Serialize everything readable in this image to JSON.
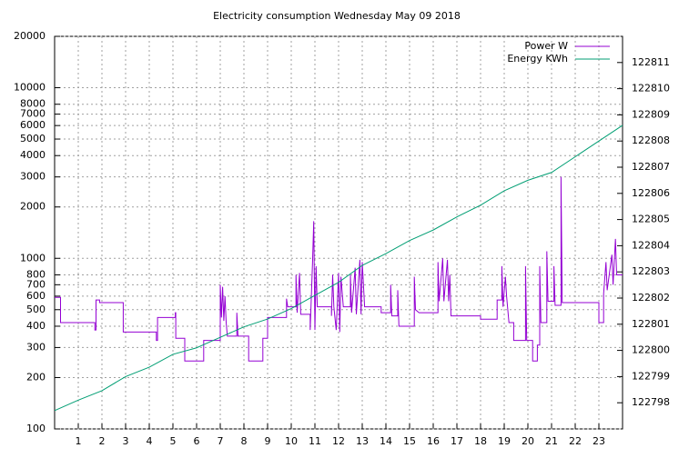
{
  "chart_data": {
    "type": "line",
    "title": "Electricity consumption Wednesday May 09 2018",
    "log_y": true,
    "grid": true,
    "legend": "top-right",
    "xlim": [
      0,
      24
    ],
    "xticks": [
      1,
      2,
      3,
      4,
      5,
      6,
      7,
      8,
      9,
      10,
      11,
      12,
      13,
      14,
      15,
      16,
      17,
      18,
      19,
      20,
      21,
      22,
      23
    ],
    "ylim": [
      100,
      20000
    ],
    "yticks": [
      100,
      200,
      300,
      400,
      500,
      600,
      700,
      800,
      1000,
      2000,
      3000,
      4000,
      5000,
      6000,
      7000,
      8000,
      10000,
      20000
    ],
    "y2lim": [
      122797,
      122812
    ],
    "y2ticks": [
      122798,
      122799,
      122800,
      122801,
      122802,
      122803,
      122804,
      122805,
      122806,
      122807,
      122808,
      122809,
      122810,
      122811
    ],
    "series": [
      {
        "name": "Power W",
        "color": "#9400d3",
        "x": [
          0,
          0.25,
          0.25,
          1.7,
          1.7,
          1.75,
          1.75,
          1.9,
          1.9,
          2.9,
          2.9,
          4.3,
          4.3,
          4.35,
          4.35,
          5.1,
          5.1,
          5.12,
          5.12,
          5.5,
          5.5,
          6.3,
          6.3,
          7.0,
          7.0,
          7.05,
          7.1,
          7.15,
          7.2,
          7.25,
          7.3,
          7.7,
          7.7,
          7.75,
          8.2,
          8.2,
          8.8,
          8.8,
          9.0,
          9.0,
          9.8,
          9.8,
          9.85,
          10.2,
          10.2,
          10.25,
          10.35,
          10.4,
          10.8,
          10.8,
          10.9,
          10.95,
          11.0,
          11.05,
          11.1,
          11.7,
          11.7,
          11.75,
          11.8,
          11.9,
          12.0,
          12.05,
          12.1,
          12.2,
          12.5,
          12.5,
          12.55,
          12.7,
          12.75,
          12.9,
          12.95,
          13.0,
          13.1,
          13.8,
          13.8,
          14.2,
          14.2,
          14.25,
          14.5,
          14.5,
          14.55,
          15.2,
          15.2,
          15.25,
          15.4,
          16.2,
          16.2,
          16.25,
          16.4,
          16.45,
          16.6,
          16.65,
          16.7,
          16.75,
          18.0,
          18.0,
          18.7,
          18.7,
          18.9,
          18.9,
          18.95,
          19.05,
          19.1,
          19.2,
          19.4,
          19.4,
          19.9,
          19.9,
          19.95,
          20.2,
          20.2,
          20.4,
          20.4,
          20.5,
          20.5,
          20.55,
          20.8,
          20.8,
          20.85,
          21.1,
          21.1,
          21.15,
          21.4,
          21.4,
          21.45,
          23.0,
          23.0,
          23.2,
          23.2,
          23.3,
          23.35,
          23.55,
          23.6,
          23.7,
          23.75,
          24
        ],
        "values": [
          590,
          590,
          420,
          420,
          380,
          380,
          570,
          570,
          550,
          550,
          370,
          370,
          330,
          330,
          450,
          450,
          480,
          480,
          340,
          340,
          250,
          250,
          330,
          330,
          700,
          450,
          680,
          430,
          600,
          420,
          350,
          350,
          480,
          350,
          350,
          250,
          250,
          340,
          340,
          450,
          450,
          580,
          520,
          520,
          800,
          480,
          820,
          470,
          470,
          380,
          950,
          1650,
          380,
          900,
          520,
          520,
          460,
          800,
          520,
          380,
          820,
          370,
          780,
          520,
          520,
          800,
          480,
          880,
          470,
          980,
          470,
          950,
          520,
          520,
          480,
          480,
          700,
          460,
          460,
          650,
          400,
          400,
          780,
          500,
          480,
          480,
          950,
          560,
          1000,
          560,
          980,
          560,
          800,
          460,
          460,
          440,
          440,
          570,
          570,
          900,
          520,
          780,
          600,
          420,
          420,
          330,
          330,
          900,
          330,
          330,
          250,
          250,
          310,
          310,
          900,
          420,
          420,
          1100,
          560,
          560,
          900,
          530,
          530,
          3000,
          550,
          550,
          420,
          420,
          620,
          950,
          650,
          1050,
          700,
          1300,
          800,
          800
        ]
      },
      {
        "name": "Energy KWh",
        "color": "#009e73",
        "axis": "y2",
        "x": [
          0,
          1,
          2,
          3,
          4,
          5,
          6,
          7,
          8,
          9,
          10,
          11,
          12,
          13,
          14,
          15,
          16,
          17,
          18,
          19,
          20,
          21,
          22,
          23,
          24
        ],
        "values": [
          122797.7,
          122798.1,
          122798.46,
          122799.0,
          122799.36,
          122799.85,
          122800.1,
          122800.5,
          122800.9,
          122801.2,
          122801.6,
          122802.1,
          122802.6,
          122803.25,
          122803.7,
          122804.2,
          122804.6,
          122805.1,
          122805.55,
          122806.1,
          122806.5,
          122806.8,
          122807.4,
          122808.0,
          122808.6
        ]
      }
    ]
  }
}
